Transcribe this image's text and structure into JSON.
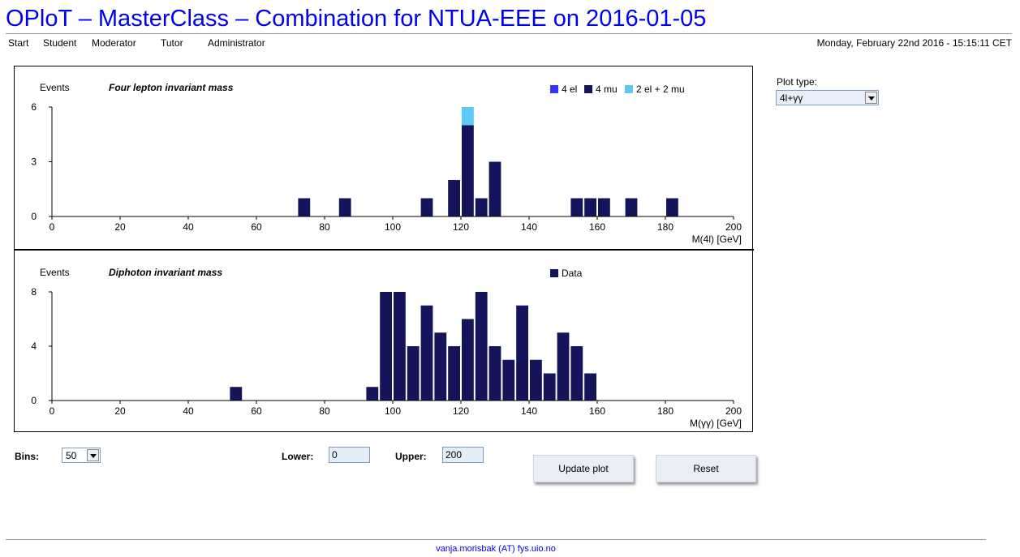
{
  "title": "OPloT – MasterClass – Combination for NTUA-EEE on 2016-01-05",
  "nav": [
    "Start",
    "Student",
    "Moderator",
    "Tutor",
    "Administrator"
  ],
  "datetime": "Monday, February 22nd 2016 - 15:15:11 CET",
  "plot_type": {
    "label": "Plot type:",
    "value": "4l+γγ"
  },
  "controls": {
    "bins_label": "Bins:",
    "bins_value": "50",
    "lower_label": "Lower:",
    "lower_value": "0",
    "upper_label": "Upper:",
    "upper_value": "200",
    "update_button": "Update plot",
    "reset_button": "Reset"
  },
  "footer": "vanja.morisbak (AT) fys.uio.no",
  "colors": {
    "4el": "#3333ff",
    "4mu": "#14145a",
    "2el2mu": "#5bc8f5",
    "data": "#14145a",
    "title": "#0000ee"
  },
  "chart_data": [
    {
      "type": "bar",
      "title": "Four lepton invariant mass",
      "ylabel": "Events",
      "xlabel": "M(4l) [GeV]",
      "xlim": [
        0,
        200
      ],
      "ylim": [
        0,
        6
      ],
      "xticks": [
        0,
        20,
        40,
        60,
        80,
        100,
        120,
        140,
        160,
        180,
        200
      ],
      "yticks": [
        0,
        3,
        6
      ],
      "bin_width": 4,
      "legend": "top-right",
      "stacked": true,
      "series": [
        {
          "name": "4 el",
          "x": [],
          "values": []
        },
        {
          "name": "4 mu",
          "x": [
            72,
            84,
            108,
            116,
            120,
            124,
            128,
            152,
            156,
            160,
            168,
            180
          ],
          "values": [
            1,
            1,
            1,
            2,
            5,
            1,
            3,
            1,
            1,
            1,
            1,
            1
          ]
        },
        {
          "name": "2 el + 2 mu",
          "x": [
            120
          ],
          "values": [
            1
          ]
        }
      ]
    },
    {
      "type": "bar",
      "title": "Diphoton invariant mass",
      "ylabel": "Events",
      "xlabel": "M(γγ) [GeV]",
      "xlim": [
        0,
        200
      ],
      "ylim": [
        0,
        8
      ],
      "xticks": [
        0,
        20,
        40,
        60,
        80,
        100,
        120,
        140,
        160,
        180,
        200
      ],
      "yticks": [
        0,
        4,
        8
      ],
      "bin_width": 4,
      "legend": "top-right",
      "series": [
        {
          "name": "Data",
          "x": [
            52,
            92,
            96,
            100,
            104,
            108,
            112,
            116,
            120,
            124,
            128,
            132,
            136,
            140,
            144,
            148,
            152,
            156
          ],
          "values": [
            1,
            1,
            8,
            8,
            4,
            7,
            5,
            4,
            6,
            8,
            4,
            3,
            7,
            3,
            2,
            5,
            4,
            2
          ]
        }
      ]
    }
  ]
}
